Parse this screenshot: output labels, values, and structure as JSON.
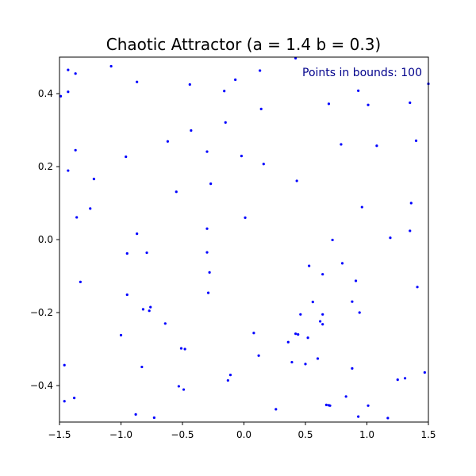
{
  "chart_data": {
    "type": "scatter",
    "title": "Chaotic Attractor (a = 1.4 b = 0.3)",
    "annotation": "Points in bounds: 100",
    "annotation_color": "#00008b",
    "marker_color": "#0000ff",
    "xlabel": "",
    "ylabel": "",
    "xlim": [
      -1.5,
      1.5
    ],
    "ylim": [
      -0.5,
      0.5
    ],
    "grid": false,
    "x_ticks": [
      {
        "value": -1.5,
        "label": "−1.5"
      },
      {
        "value": -1.0,
        "label": "−1.0"
      },
      {
        "value": -0.5,
        "label": "−0.5"
      },
      {
        "value": 0.0,
        "label": "0.0"
      },
      {
        "value": 0.5,
        "label": "0.5"
      },
      {
        "value": 1.0,
        "label": "1.0"
      },
      {
        "value": 1.5,
        "label": "1.5"
      }
    ],
    "y_ticks": [
      {
        "value": -0.4,
        "label": "−0.4"
      },
      {
        "value": -0.2,
        "label": "−0.2"
      },
      {
        "value": 0.0,
        "label": "0.0"
      },
      {
        "value": 0.2,
        "label": "0.2"
      },
      {
        "value": 0.4,
        "label": "0.4"
      }
    ],
    "points": [
      [
        -1.43,
        0.465
      ],
      [
        -1.37,
        0.455
      ],
      [
        -1.08,
        0.475
      ],
      [
        0.13,
        0.463
      ],
      [
        0.42,
        0.497
      ],
      [
        -1.49,
        0.393
      ],
      [
        -1.43,
        0.405
      ],
      [
        -0.87,
        0.432
      ],
      [
        -0.44,
        0.425
      ],
      [
        -0.07,
        0.438
      ],
      [
        -0.16,
        0.407
      ],
      [
        0.93,
        0.408
      ],
      [
        1.5,
        0.427
      ],
      [
        0.69,
        0.372
      ],
      [
        1.01,
        0.369
      ],
      [
        1.35,
        0.375
      ],
      [
        0.14,
        0.358
      ],
      [
        -0.15,
        0.321
      ],
      [
        -0.43,
        0.299
      ],
      [
        -0.62,
        0.269
      ],
      [
        0.79,
        0.261
      ],
      [
        1.08,
        0.257
      ],
      [
        1.4,
        0.271
      ],
      [
        -1.37,
        0.245
      ],
      [
        -0.3,
        0.241
      ],
      [
        -0.96,
        0.227
      ],
      [
        -0.02,
        0.229
      ],
      [
        0.16,
        0.207
      ],
      [
        -1.43,
        0.189
      ],
      [
        -1.22,
        0.166
      ],
      [
        0.43,
        0.161
      ],
      [
        -0.27,
        0.153
      ],
      [
        -0.55,
        0.131
      ],
      [
        1.36,
        0.1
      ],
      [
        0.96,
        0.089
      ],
      [
        -1.25,
        0.085
      ],
      [
        -1.36,
        0.061
      ],
      [
        0.01,
        0.06
      ],
      [
        -0.3,
        0.03
      ],
      [
        -0.87,
        0.016
      ],
      [
        1.19,
        0.005
      ],
      [
        0.72,
        -0.001
      ],
      [
        1.35,
        0.024
      ],
      [
        -0.95,
        -0.038
      ],
      [
        -0.79,
        -0.036
      ],
      [
        -0.3,
        -0.035
      ],
      [
        0.8,
        -0.065
      ],
      [
        0.53,
        -0.072
      ],
      [
        -0.28,
        -0.09
      ],
      [
        0.64,
        -0.095
      ],
      [
        -1.33,
        -0.116
      ],
      [
        0.91,
        -0.113
      ],
      [
        1.41,
        -0.13
      ],
      [
        -0.95,
        -0.151
      ],
      [
        -0.29,
        -0.146
      ],
      [
        0.56,
        -0.171
      ],
      [
        0.88,
        -0.17
      ],
      [
        -0.76,
        -0.185
      ],
      [
        -0.82,
        -0.191
      ],
      [
        -0.77,
        -0.195
      ],
      [
        0.94,
        -0.2
      ],
      [
        0.46,
        -0.205
      ],
      [
        0.64,
        -0.205
      ],
      [
        -0.64,
        -0.23
      ],
      [
        0.62,
        -0.224
      ],
      [
        0.64,
        -0.232
      ],
      [
        -1.0,
        -0.262
      ],
      [
        0.08,
        -0.256
      ],
      [
        0.42,
        -0.258
      ],
      [
        0.44,
        -0.26
      ],
      [
        0.52,
        -0.269
      ],
      [
        0.36,
        -0.281
      ],
      [
        -0.51,
        -0.298
      ],
      [
        -0.48,
        -0.3
      ],
      [
        0.12,
        -0.318
      ],
      [
        0.6,
        -0.326
      ],
      [
        0.39,
        -0.336
      ],
      [
        0.5,
        -0.341
      ],
      [
        -1.46,
        -0.344
      ],
      [
        -0.83,
        -0.349
      ],
      [
        0.88,
        -0.353
      ],
      [
        -0.11,
        -0.371
      ],
      [
        1.47,
        -0.364
      ],
      [
        -0.13,
        -0.386
      ],
      [
        1.25,
        -0.384
      ],
      [
        1.31,
        -0.38
      ],
      [
        -0.53,
        -0.402
      ],
      [
        -0.49,
        -0.411
      ],
      [
        0.83,
        -0.43
      ],
      [
        -1.38,
        -0.434
      ],
      [
        -1.46,
        -0.443
      ],
      [
        0.67,
        -0.453
      ],
      [
        0.69,
        -0.454
      ],
      [
        1.01,
        -0.455
      ],
      [
        0.26,
        -0.465
      ],
      [
        -0.88,
        -0.479
      ],
      [
        -0.73,
        -0.488
      ],
      [
        0.93,
        -0.485
      ],
      [
        1.17,
        -0.489
      ],
      [
        0.7,
        -0.455
      ]
    ]
  }
}
